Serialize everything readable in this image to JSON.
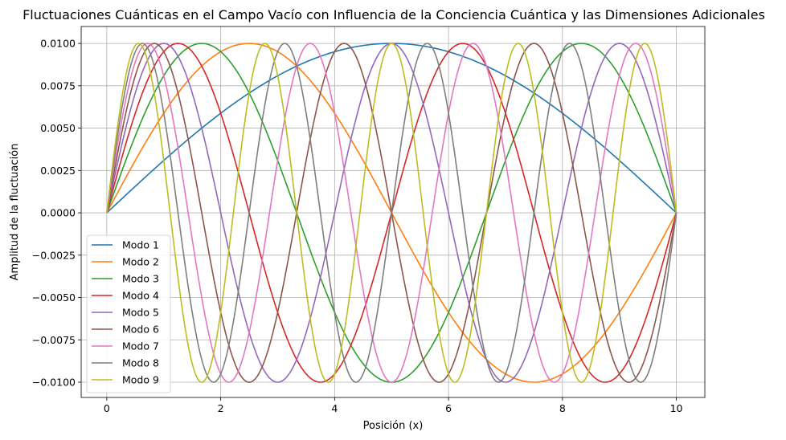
{
  "chart_data": {
    "type": "line",
    "title": "Fluctuaciones Cuánticas en el Campo Vacío con Influencia de la Conciencia Cuántica y las Dimensiones Adicionales",
    "xlabel": "Posición (x)",
    "ylabel": "Amplitud de la fluctuación",
    "xlim": [
      -0.45,
      10.5
    ],
    "ylim": [
      -0.0109,
      0.011
    ],
    "x_ticks": [
      0,
      2,
      4,
      6,
      8,
      10
    ],
    "x_tick_labels": [
      "0",
      "2",
      "4",
      "6",
      "8",
      "10"
    ],
    "y_ticks": [
      -0.01,
      -0.0075,
      -0.005,
      -0.0025,
      0,
      0.0025,
      0.005,
      0.0075,
      0.01
    ],
    "y_tick_labels": [
      "−0.0100",
      "−0.0075",
      "−0.0050",
      "−0.0025",
      "0.0000",
      "0.0025",
      "0.0050",
      "0.0075",
      "0.0100"
    ],
    "grid": true,
    "legend_position": "lower-left",
    "x_domain": [
      0,
      10
    ],
    "amplitude": 0.01,
    "series": [
      {
        "name": "Modo 1",
        "mode": 1,
        "color": "#1f77b4"
      },
      {
        "name": "Modo 2",
        "mode": 2,
        "color": "#ff7f0e"
      },
      {
        "name": "Modo 3",
        "mode": 3,
        "color": "#2ca02c"
      },
      {
        "name": "Modo 4",
        "mode": 4,
        "color": "#d62728"
      },
      {
        "name": "Modo 5",
        "mode": 5,
        "color": "#9467bd"
      },
      {
        "name": "Modo 6",
        "mode": 6,
        "color": "#8c564b"
      },
      {
        "name": "Modo 7",
        "mode": 7,
        "color": "#e377c2"
      },
      {
        "name": "Modo 8",
        "mode": 8,
        "color": "#7f7f7f"
      },
      {
        "name": "Modo 9",
        "mode": 9,
        "color": "#bcbd22"
      }
    ]
  }
}
